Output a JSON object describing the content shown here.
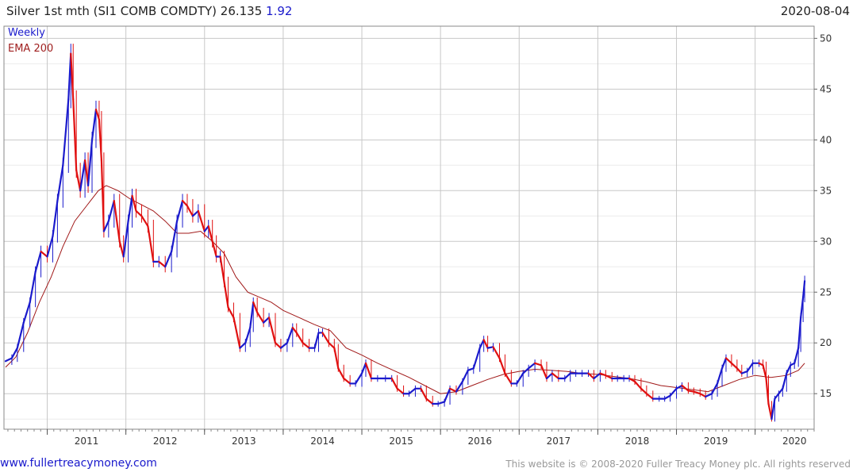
{
  "header": {
    "title": "Silver 1st mth (SI1 COMB COMDTY) 26.135",
    "change": "1.92",
    "date": "2020-08-04"
  },
  "footer": {
    "link": "www.fullertreacymoney.com",
    "copyright": "This website is © 2008-2020 Fuller Treacy Money plc. All rights reserved"
  },
  "colors": {
    "up": "#1a1acc",
    "down": "#e01010",
    "ema": "#a01818",
    "grid": "#c8c8c8"
  },
  "chart_data": {
    "type": "line",
    "legend": [
      "Weekly",
      "EMA 200"
    ],
    "x_tick_labels": [
      "2011",
      "2012",
      "2013",
      "2014",
      "2015",
      "2016",
      "2017",
      "2018",
      "2019",
      "2020"
    ],
    "y_tick_labels": [
      "15",
      "20",
      "25",
      "30",
      "35",
      "40",
      "45",
      "50"
    ],
    "y_ticks": [
      15,
      20,
      25,
      30,
      35,
      40,
      45,
      50
    ],
    "xlim": [
      2010.45,
      2020.75
    ],
    "ylim": [
      11.5,
      51.2
    ],
    "grid": true,
    "series": [
      {
        "name": "Weekly",
        "points": [
          [
            2010.47,
            18.2
          ],
          [
            2010.55,
            18.5
          ],
          [
            2010.62,
            19.5
          ],
          [
            2010.7,
            22.0
          ],
          [
            2010.78,
            24.0
          ],
          [
            2010.85,
            27.0
          ],
          [
            2010.92,
            29.0
          ],
          [
            2011.0,
            28.5
          ],
          [
            2011.07,
            30.5
          ],
          [
            2011.13,
            34.0
          ],
          [
            2011.2,
            37.5
          ],
          [
            2011.27,
            44.0
          ],
          [
            2011.3,
            48.5
          ],
          [
            2011.33,
            44.0
          ],
          [
            2011.37,
            37.0
          ],
          [
            2011.42,
            35.0
          ],
          [
            2011.48,
            38.0
          ],
          [
            2011.52,
            35.5
          ],
          [
            2011.57,
            40.0
          ],
          [
            2011.62,
            43.0
          ],
          [
            2011.66,
            42.0
          ],
          [
            2011.69,
            38.0
          ],
          [
            2011.72,
            31.0
          ],
          [
            2011.78,
            32.0
          ],
          [
            2011.85,
            34.0
          ],
          [
            2011.92,
            30.0
          ],
          [
            2011.97,
            28.5
          ],
          [
            2012.03,
            32.0
          ],
          [
            2012.08,
            34.5
          ],
          [
            2012.13,
            33.0
          ],
          [
            2012.2,
            32.5
          ],
          [
            2012.28,
            31.5
          ],
          [
            2012.35,
            28.0
          ],
          [
            2012.42,
            28.0
          ],
          [
            2012.5,
            27.5
          ],
          [
            2012.58,
            29.0
          ],
          [
            2012.65,
            32.0
          ],
          [
            2012.72,
            34.0
          ],
          [
            2012.78,
            33.5
          ],
          [
            2012.85,
            32.5
          ],
          [
            2012.92,
            33.0
          ],
          [
            2013.0,
            31.0
          ],
          [
            2013.05,
            31.5
          ],
          [
            2013.1,
            30.0
          ],
          [
            2013.15,
            28.5
          ],
          [
            2013.2,
            28.5
          ],
          [
            2013.25,
            26.0
          ],
          [
            2013.3,
            23.5
          ],
          [
            2013.37,
            22.5
          ],
          [
            2013.45,
            19.5
          ],
          [
            2013.52,
            20.0
          ],
          [
            2013.58,
            21.5
          ],
          [
            2013.62,
            24.0
          ],
          [
            2013.67,
            23.0
          ],
          [
            2013.75,
            22.0
          ],
          [
            2013.82,
            22.5
          ],
          [
            2013.9,
            20.0
          ],
          [
            2013.97,
            19.5
          ],
          [
            2014.05,
            20.0
          ],
          [
            2014.12,
            21.5
          ],
          [
            2014.17,
            21.0
          ],
          [
            2014.25,
            20.0
          ],
          [
            2014.33,
            19.5
          ],
          [
            2014.4,
            19.5
          ],
          [
            2014.45,
            21.0
          ],
          [
            2014.5,
            21.0
          ],
          [
            2014.58,
            20.0
          ],
          [
            2014.65,
            19.5
          ],
          [
            2014.7,
            17.5
          ],
          [
            2014.77,
            16.5
          ],
          [
            2014.85,
            16.0
          ],
          [
            2014.92,
            16.0
          ],
          [
            2015.0,
            17.0
          ],
          [
            2015.05,
            18.0
          ],
          [
            2015.12,
            16.5
          ],
          [
            2015.2,
            16.5
          ],
          [
            2015.3,
            16.5
          ],
          [
            2015.38,
            16.5
          ],
          [
            2015.45,
            15.5
          ],
          [
            2015.53,
            15.0
          ],
          [
            2015.6,
            15.0
          ],
          [
            2015.68,
            15.5
          ],
          [
            2015.75,
            15.5
          ],
          [
            2015.82,
            14.5
          ],
          [
            2015.9,
            14.0
          ],
          [
            2015.97,
            14.0
          ],
          [
            2016.05,
            14.2
          ],
          [
            2016.12,
            15.5
          ],
          [
            2016.2,
            15.2
          ],
          [
            2016.28,
            16.2
          ],
          [
            2016.35,
            17.3
          ],
          [
            2016.42,
            17.5
          ],
          [
            2016.5,
            19.5
          ],
          [
            2016.55,
            20.3
          ],
          [
            2016.6,
            19.5
          ],
          [
            2016.67,
            19.6
          ],
          [
            2016.75,
            18.5
          ],
          [
            2016.82,
            17.0
          ],
          [
            2016.9,
            16.0
          ],
          [
            2016.97,
            16.0
          ],
          [
            2017.05,
            17.0
          ],
          [
            2017.12,
            17.5
          ],
          [
            2017.2,
            18.0
          ],
          [
            2017.28,
            17.8
          ],
          [
            2017.35,
            16.5
          ],
          [
            2017.42,
            17.0
          ],
          [
            2017.5,
            16.5
          ],
          [
            2017.58,
            16.5
          ],
          [
            2017.65,
            17.0
          ],
          [
            2017.72,
            17.0
          ],
          [
            2017.8,
            17.0
          ],
          [
            2017.88,
            17.0
          ],
          [
            2017.95,
            16.5
          ],
          [
            2018.03,
            17.0
          ],
          [
            2018.1,
            16.8
          ],
          [
            2018.18,
            16.5
          ],
          [
            2018.25,
            16.5
          ],
          [
            2018.33,
            16.5
          ],
          [
            2018.4,
            16.5
          ],
          [
            2018.47,
            16.2
          ],
          [
            2018.55,
            15.5
          ],
          [
            2018.62,
            15.0
          ],
          [
            2018.7,
            14.5
          ],
          [
            2018.78,
            14.5
          ],
          [
            2018.85,
            14.5
          ],
          [
            2018.92,
            14.8
          ],
          [
            2019.0,
            15.5
          ],
          [
            2019.07,
            15.8
          ],
          [
            2019.15,
            15.3
          ],
          [
            2019.22,
            15.2
          ],
          [
            2019.3,
            15.0
          ],
          [
            2019.37,
            14.7
          ],
          [
            2019.45,
            15.0
          ],
          [
            2019.52,
            16.0
          ],
          [
            2019.58,
            17.5
          ],
          [
            2019.63,
            18.5
          ],
          [
            2019.7,
            18.0
          ],
          [
            2019.77,
            17.5
          ],
          [
            2019.83,
            17.0
          ],
          [
            2019.9,
            17.2
          ],
          [
            2019.97,
            18.0
          ],
          [
            2020.05,
            18.0
          ],
          [
            2020.1,
            17.8
          ],
          [
            2020.14,
            16.5
          ],
          [
            2020.17,
            14.0
          ],
          [
            2020.21,
            12.5
          ],
          [
            2020.25,
            14.5
          ],
          [
            2020.3,
            15.0
          ],
          [
            2020.35,
            15.5
          ],
          [
            2020.4,
            17.0
          ],
          [
            2020.45,
            17.8
          ],
          [
            2020.5,
            18.0
          ],
          [
            2020.55,
            19.5
          ],
          [
            2020.58,
            22.5
          ],
          [
            2020.61,
            24.5
          ],
          [
            2020.63,
            26.1
          ]
        ]
      },
      {
        "name": "EMA 200",
        "points": [
          [
            2010.47,
            17.6
          ],
          [
            2010.6,
            18.6
          ],
          [
            2010.75,
            21.0
          ],
          [
            2010.9,
            24.0
          ],
          [
            2011.05,
            26.5
          ],
          [
            2011.2,
            29.5
          ],
          [
            2011.35,
            32.0
          ],
          [
            2011.5,
            33.5
          ],
          [
            2011.65,
            35.0
          ],
          [
            2011.75,
            35.5
          ],
          [
            2011.9,
            35.0
          ],
          [
            2012.05,
            34.2
          ],
          [
            2012.2,
            33.6
          ],
          [
            2012.35,
            33.0
          ],
          [
            2012.5,
            32.0
          ],
          [
            2012.65,
            30.8
          ],
          [
            2012.8,
            30.8
          ],
          [
            2012.95,
            31.0
          ],
          [
            2013.1,
            30.0
          ],
          [
            2013.25,
            28.8
          ],
          [
            2013.4,
            26.5
          ],
          [
            2013.55,
            25.0
          ],
          [
            2013.7,
            24.5
          ],
          [
            2013.85,
            24.0
          ],
          [
            2014.0,
            23.2
          ],
          [
            2014.2,
            22.5
          ],
          [
            2014.4,
            21.8
          ],
          [
            2014.6,
            21.2
          ],
          [
            2014.8,
            19.5
          ],
          [
            2015.0,
            18.8
          ],
          [
            2015.2,
            18.0
          ],
          [
            2015.4,
            17.3
          ],
          [
            2015.6,
            16.6
          ],
          [
            2015.8,
            15.8
          ],
          [
            2016.0,
            15.0
          ],
          [
            2016.2,
            15.2
          ],
          [
            2016.4,
            15.8
          ],
          [
            2016.6,
            16.4
          ],
          [
            2016.8,
            16.9
          ],
          [
            2017.0,
            17.2
          ],
          [
            2017.2,
            17.4
          ],
          [
            2017.4,
            17.3
          ],
          [
            2017.6,
            17.2
          ],
          [
            2017.8,
            17.0
          ],
          [
            2018.0,
            16.9
          ],
          [
            2018.2,
            16.7
          ],
          [
            2018.4,
            16.5
          ],
          [
            2018.6,
            16.2
          ],
          [
            2018.8,
            15.8
          ],
          [
            2019.0,
            15.6
          ],
          [
            2019.2,
            15.4
          ],
          [
            2019.4,
            15.2
          ],
          [
            2019.6,
            15.8
          ],
          [
            2019.8,
            16.4
          ],
          [
            2020.0,
            16.8
          ],
          [
            2020.2,
            16.6
          ],
          [
            2020.4,
            16.8
          ],
          [
            2020.55,
            17.3
          ],
          [
            2020.63,
            18.0
          ]
        ]
      }
    ]
  }
}
